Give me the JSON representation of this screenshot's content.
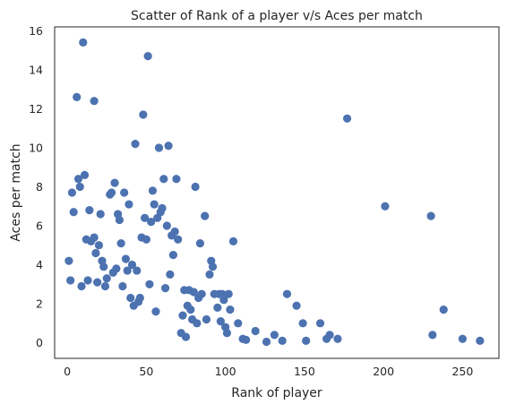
{
  "chart_data": {
    "type": "scatter",
    "title": "Scatter of Rank of a player v/s Aces per match",
    "xlabel": "Rank of player",
    "ylabel": "Aces per match",
    "xlim": [
      -8,
      273
    ],
    "ylim": [
      -0.8,
      16.2
    ],
    "xticks": [
      0,
      50,
      100,
      150,
      200,
      250
    ],
    "yticks": [
      0,
      2,
      4,
      6,
      8,
      10,
      12,
      14,
      16
    ],
    "grid": false,
    "marker_color": "#4c72b0",
    "points": [
      {
        "x": 1,
        "y": 4.2
      },
      {
        "x": 2,
        "y": 3.2
      },
      {
        "x": 3,
        "y": 7.7
      },
      {
        "x": 4,
        "y": 6.7
      },
      {
        "x": 6,
        "y": 12.6
      },
      {
        "x": 7,
        "y": 8.4
      },
      {
        "x": 8,
        "y": 8.0
      },
      {
        "x": 9,
        "y": 2.9
      },
      {
        "x": 10,
        "y": 15.4
      },
      {
        "x": 11,
        "y": 8.6
      },
      {
        "x": 12,
        "y": 5.3
      },
      {
        "x": 13,
        "y": 3.2
      },
      {
        "x": 14,
        "y": 6.8
      },
      {
        "x": 15,
        "y": 5.2
      },
      {
        "x": 17,
        "y": 5.4
      },
      {
        "x": 17,
        "y": 12.4
      },
      {
        "x": 18,
        "y": 4.6
      },
      {
        "x": 19,
        "y": 3.1
      },
      {
        "x": 20,
        "y": 5.0
      },
      {
        "x": 21,
        "y": 6.6
      },
      {
        "x": 22,
        "y": 4.2
      },
      {
        "x": 23,
        "y": 3.9
      },
      {
        "x": 24,
        "y": 2.9
      },
      {
        "x": 25,
        "y": 3.3
      },
      {
        "x": 27,
        "y": 7.6
      },
      {
        "x": 28,
        "y": 7.7
      },
      {
        "x": 29,
        "y": 3.6
      },
      {
        "x": 30,
        "y": 8.2
      },
      {
        "x": 31,
        "y": 3.8
      },
      {
        "x": 32,
        "y": 6.6
      },
      {
        "x": 33,
        "y": 6.3
      },
      {
        "x": 34,
        "y": 5.1
      },
      {
        "x": 35,
        "y": 2.9
      },
      {
        "x": 36,
        "y": 7.7
      },
      {
        "x": 37,
        "y": 4.3
      },
      {
        "x": 38,
        "y": 3.7
      },
      {
        "x": 39,
        "y": 7.1
      },
      {
        "x": 40,
        "y": 2.3
      },
      {
        "x": 41,
        "y": 4.0
      },
      {
        "x": 42,
        "y": 1.9
      },
      {
        "x": 43,
        "y": 10.2
      },
      {
        "x": 44,
        "y": 3.7
      },
      {
        "x": 45,
        "y": 2.1
      },
      {
        "x": 46,
        "y": 2.3
      },
      {
        "x": 47,
        "y": 5.4
      },
      {
        "x": 48,
        "y": 11.7
      },
      {
        "x": 49,
        "y": 6.4
      },
      {
        "x": 50,
        "y": 5.3
      },
      {
        "x": 51,
        "y": 14.7
      },
      {
        "x": 52,
        "y": 3.0
      },
      {
        "x": 53,
        "y": 6.2
      },
      {
        "x": 54,
        "y": 7.8
      },
      {
        "x": 55,
        "y": 7.1
      },
      {
        "x": 56,
        "y": 1.6
      },
      {
        "x": 57,
        "y": 6.4
      },
      {
        "x": 58,
        "y": 10.0
      },
      {
        "x": 59,
        "y": 6.7
      },
      {
        "x": 60,
        "y": 6.9
      },
      {
        "x": 61,
        "y": 8.4
      },
      {
        "x": 62,
        "y": 2.8
      },
      {
        "x": 63,
        "y": 6.0
      },
      {
        "x": 64,
        "y": 10.1
      },
      {
        "x": 65,
        "y": 3.5
      },
      {
        "x": 66,
        "y": 5.5
      },
      {
        "x": 67,
        "y": 4.5
      },
      {
        "x": 68,
        "y": 5.7
      },
      {
        "x": 69,
        "y": 8.4
      },
      {
        "x": 70,
        "y": 5.3
      },
      {
        "x": 72,
        "y": 0.5
      },
      {
        "x": 73,
        "y": 1.4
      },
      {
        "x": 74,
        "y": 2.7
      },
      {
        "x": 75,
        "y": 0.3
      },
      {
        "x": 76,
        "y": 1.9
      },
      {
        "x": 77,
        "y": 2.7
      },
      {
        "x": 78,
        "y": 1.7
      },
      {
        "x": 79,
        "y": 1.2
      },
      {
        "x": 80,
        "y": 2.6
      },
      {
        "x": 81,
        "y": 8.0
      },
      {
        "x": 82,
        "y": 1.0
      },
      {
        "x": 83,
        "y": 2.3
      },
      {
        "x": 84,
        "y": 5.1
      },
      {
        "x": 85,
        "y": 2.5
      },
      {
        "x": 87,
        "y": 6.5
      },
      {
        "x": 88,
        "y": 1.2
      },
      {
        "x": 90,
        "y": 3.5
      },
      {
        "x": 91,
        "y": 4.2
      },
      {
        "x": 92,
        "y": 3.9
      },
      {
        "x": 93,
        "y": 2.5
      },
      {
        "x": 95,
        "y": 1.8
      },
      {
        "x": 96,
        "y": 2.5
      },
      {
        "x": 97,
        "y": 1.1
      },
      {
        "x": 98,
        "y": 2.5
      },
      {
        "x": 99,
        "y": 2.2
      },
      {
        "x": 100,
        "y": 0.8
      },
      {
        "x": 101,
        "y": 0.5
      },
      {
        "x": 102,
        "y": 2.5
      },
      {
        "x": 103,
        "y": 1.7
      },
      {
        "x": 105,
        "y": 5.2
      },
      {
        "x": 108,
        "y": 1.0
      },
      {
        "x": 111,
        "y": 0.2
      },
      {
        "x": 113,
        "y": 0.15
      },
      {
        "x": 119,
        "y": 0.6
      },
      {
        "x": 126,
        "y": 0.05
      },
      {
        "x": 131,
        "y": 0.4
      },
      {
        "x": 136,
        "y": 0.1
      },
      {
        "x": 139,
        "y": 2.5
      },
      {
        "x": 145,
        "y": 1.9
      },
      {
        "x": 149,
        "y": 1.0
      },
      {
        "x": 151,
        "y": 0.1
      },
      {
        "x": 160,
        "y": 1.0
      },
      {
        "x": 164,
        "y": 0.2
      },
      {
        "x": 166,
        "y": 0.4
      },
      {
        "x": 171,
        "y": 0.2
      },
      {
        "x": 177,
        "y": 11.5
      },
      {
        "x": 201,
        "y": 7.0
      },
      {
        "x": 230,
        "y": 6.5
      },
      {
        "x": 231,
        "y": 0.4
      },
      {
        "x": 238,
        "y": 1.7
      },
      {
        "x": 250,
        "y": 0.2
      },
      {
        "x": 261,
        "y": 0.1
      }
    ]
  }
}
